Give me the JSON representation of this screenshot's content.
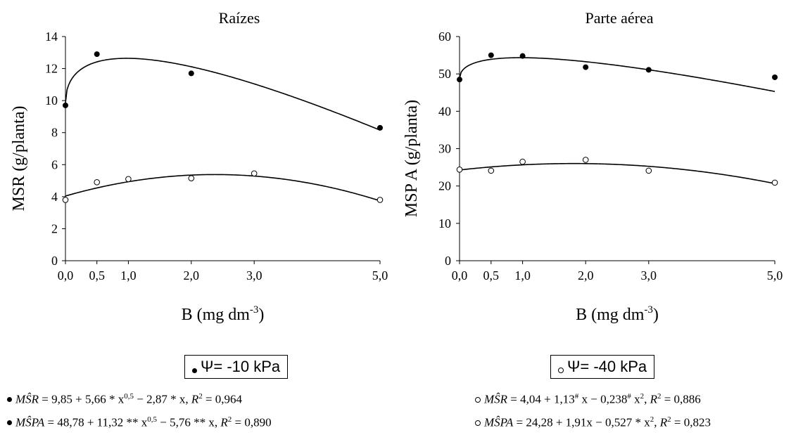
{
  "chart_data": [
    {
      "type": "scatter",
      "title": "Raízes",
      "xlabel_main": "B (mg dm",
      "xlabel_sup": "-3",
      "xlabel_close": ")",
      "ylabel": "MSR (g/planta)",
      "ylim": [
        0,
        14
      ],
      "yticks": [
        0,
        2,
        4,
        6,
        8,
        10,
        12,
        14
      ],
      "xlim": [
        0,
        5
      ],
      "xticks": [
        0,
        0.5,
        1,
        2,
        3,
        5
      ],
      "xtick_labels": [
        "0,0",
        "0,5",
        "1,0",
        "2,0",
        "3,0",
        "5,0"
      ],
      "series": [
        {
          "marker": "filled",
          "x": [
            0,
            0.5,
            2,
            5
          ],
          "y": [
            9.7,
            12.9,
            11.7,
            8.3
          ],
          "fit": {
            "form": "sqrt",
            "b0": 9.85,
            "b1": 5.66,
            "b2": -2.87
          }
        },
        {
          "marker": "open",
          "x": [
            0,
            0.5,
            1,
            2,
            3,
            5
          ],
          "y": [
            3.8,
            4.9,
            5.1,
            5.15,
            5.45,
            3.8
          ],
          "fit": {
            "form": "quad",
            "b0": 4.04,
            "b1": 1.13,
            "b2": -0.238
          }
        }
      ]
    },
    {
      "type": "scatter",
      "title": "Parte aérea",
      "xlabel_main": "B (mg dm",
      "xlabel_sup": "-3",
      "xlabel_close": ")",
      "ylabel": "MSP A (g/planta)",
      "ylim": [
        0,
        60
      ],
      "yticks": [
        0,
        10,
        20,
        30,
        40,
        50,
        60
      ],
      "xlim": [
        0,
        5
      ],
      "xticks": [
        0,
        0.5,
        1,
        2,
        3,
        5
      ],
      "xtick_labels": [
        "0,0",
        "0,5",
        "1,0",
        "2,0",
        "3,0",
        "5,0"
      ],
      "series": [
        {
          "marker": "filled",
          "x": [
            0,
            0.5,
            1,
            2,
            3,
            5
          ],
          "y": [
            48.5,
            55,
            54.8,
            51.8,
            51.1,
            49.1
          ],
          "fit": {
            "form": "sqrt",
            "b0": 48.78,
            "b1": 11.32,
            "b2": -5.76
          }
        },
        {
          "marker": "open",
          "x": [
            0,
            0.5,
            1,
            2,
            3,
            5
          ],
          "y": [
            24.4,
            24.1,
            26.5,
            27,
            24.1,
            20.9
          ],
          "fit": {
            "form": "quad",
            "b0": 24.28,
            "b1": 1.91,
            "b2": -0.527
          }
        }
      ]
    }
  ],
  "legend": {
    "filled": "Ψ= -10 kPa",
    "open": "Ψ= -40 kPa"
  },
  "equations": {
    "filled_msr": {
      "lhs": "MŜR",
      "rhs": " = 9,85 + 5,66 * x",
      "exp1": "0,5",
      "mid": " − 2,87 * x, ",
      "r": "R",
      "r_exp": "2",
      "tail": " = 0,964"
    },
    "filled_mspa": {
      "lhs": "MŜPA",
      "rhs": " = 48,78 + 11,32 ** x",
      "exp1": "0,5",
      "mid": " − 5,76 ** x, ",
      "r": "R",
      "r_exp": "2",
      "tail": " = 0,890"
    },
    "open_msr": {
      "lhs": "MŜR",
      "rhs": " = 4,04 + 1,13",
      "mark1": "#",
      "mid1": " x − 0,238",
      "mark2": "#",
      "mid2": " x",
      "exp2": "2",
      "comma": ", ",
      "r": "R",
      "r_exp": "2",
      "tail": " = 0,886"
    },
    "open_mspa": {
      "lhs": "MŜPA",
      "rhs": " = 24,28 + 1,91x − 0,527 * x",
      "exp2": "2",
      "comma": ", ",
      "r": "R",
      "r_exp": "2",
      "tail": " = 0,823"
    }
  }
}
